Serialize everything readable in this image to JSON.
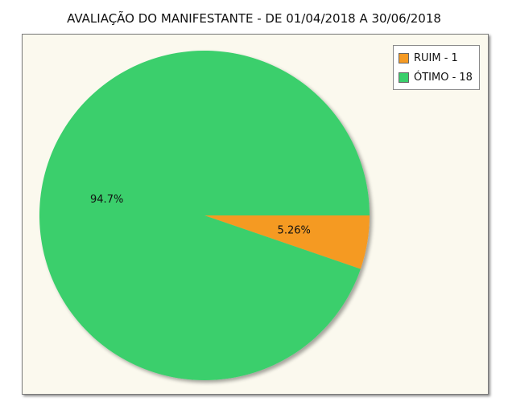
{
  "title": "AVALIAÇÃO DO MANIFESTANTE - DE 01/04/2018 A 30/06/2018",
  "chart_data": {
    "type": "pie",
    "title": "AVALIAÇÃO DO MANIFESTANTE - DE 01/04/2018 A 30/06/2018",
    "slices": [
      {
        "label": "RUIM",
        "value": 1,
        "percent_label": "5.26%",
        "color": "#f59a23",
        "legend_text": "RUIM - 1"
      },
      {
        "label": "ÓTIMO",
        "value": 18,
        "percent_label": "94.7%",
        "color": "#3acf6c",
        "legend_text": "ÓTIMO - 18"
      }
    ],
    "legend_placement": "top-right",
    "plot_background": "#fbf9ee"
  },
  "colors": {
    "ruim": "#f59a23",
    "otimo": "#3acf6c",
    "plot_background": "#fbf9ee"
  }
}
